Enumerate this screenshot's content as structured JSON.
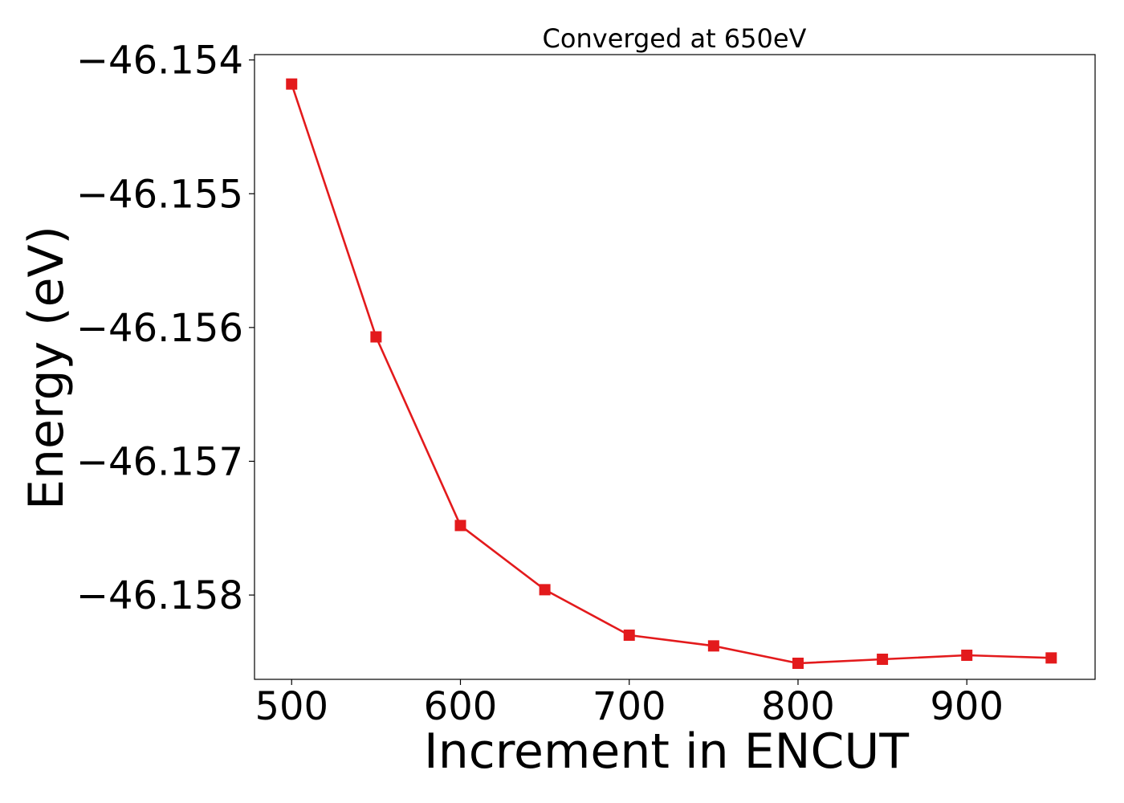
{
  "chart_data": {
    "type": "line",
    "title": "Converged at 650eV",
    "xlabel": "Increment in ENCUT",
    "ylabel": "Energy (eV)",
    "xlim": [
      478,
      976
    ],
    "ylim": [
      -46.15863,
      -46.15396
    ],
    "xticks": [
      500,
      600,
      700,
      800,
      900
    ],
    "xtick_labels": [
      "500",
      "600",
      "700",
      "800",
      "900"
    ],
    "yticks": [
      -46.154,
      -46.155,
      -46.156,
      -46.157,
      -46.158
    ],
    "ytick_labels": [
      "−46.154",
      "−46.155",
      "−46.156",
      "−46.157",
      "−46.158"
    ],
    "grid": false,
    "marker": "square",
    "color": "#e31a1c",
    "series": [
      {
        "x": [
          500,
          550,
          600,
          650,
          700,
          750,
          800,
          850,
          900,
          950
        ],
        "y": [
          -46.15418,
          -46.15607,
          -46.15748,
          -46.15796,
          -46.1583,
          -46.15838,
          -46.15851,
          -46.15848,
          -46.15845,
          -46.15847
        ]
      }
    ]
  }
}
